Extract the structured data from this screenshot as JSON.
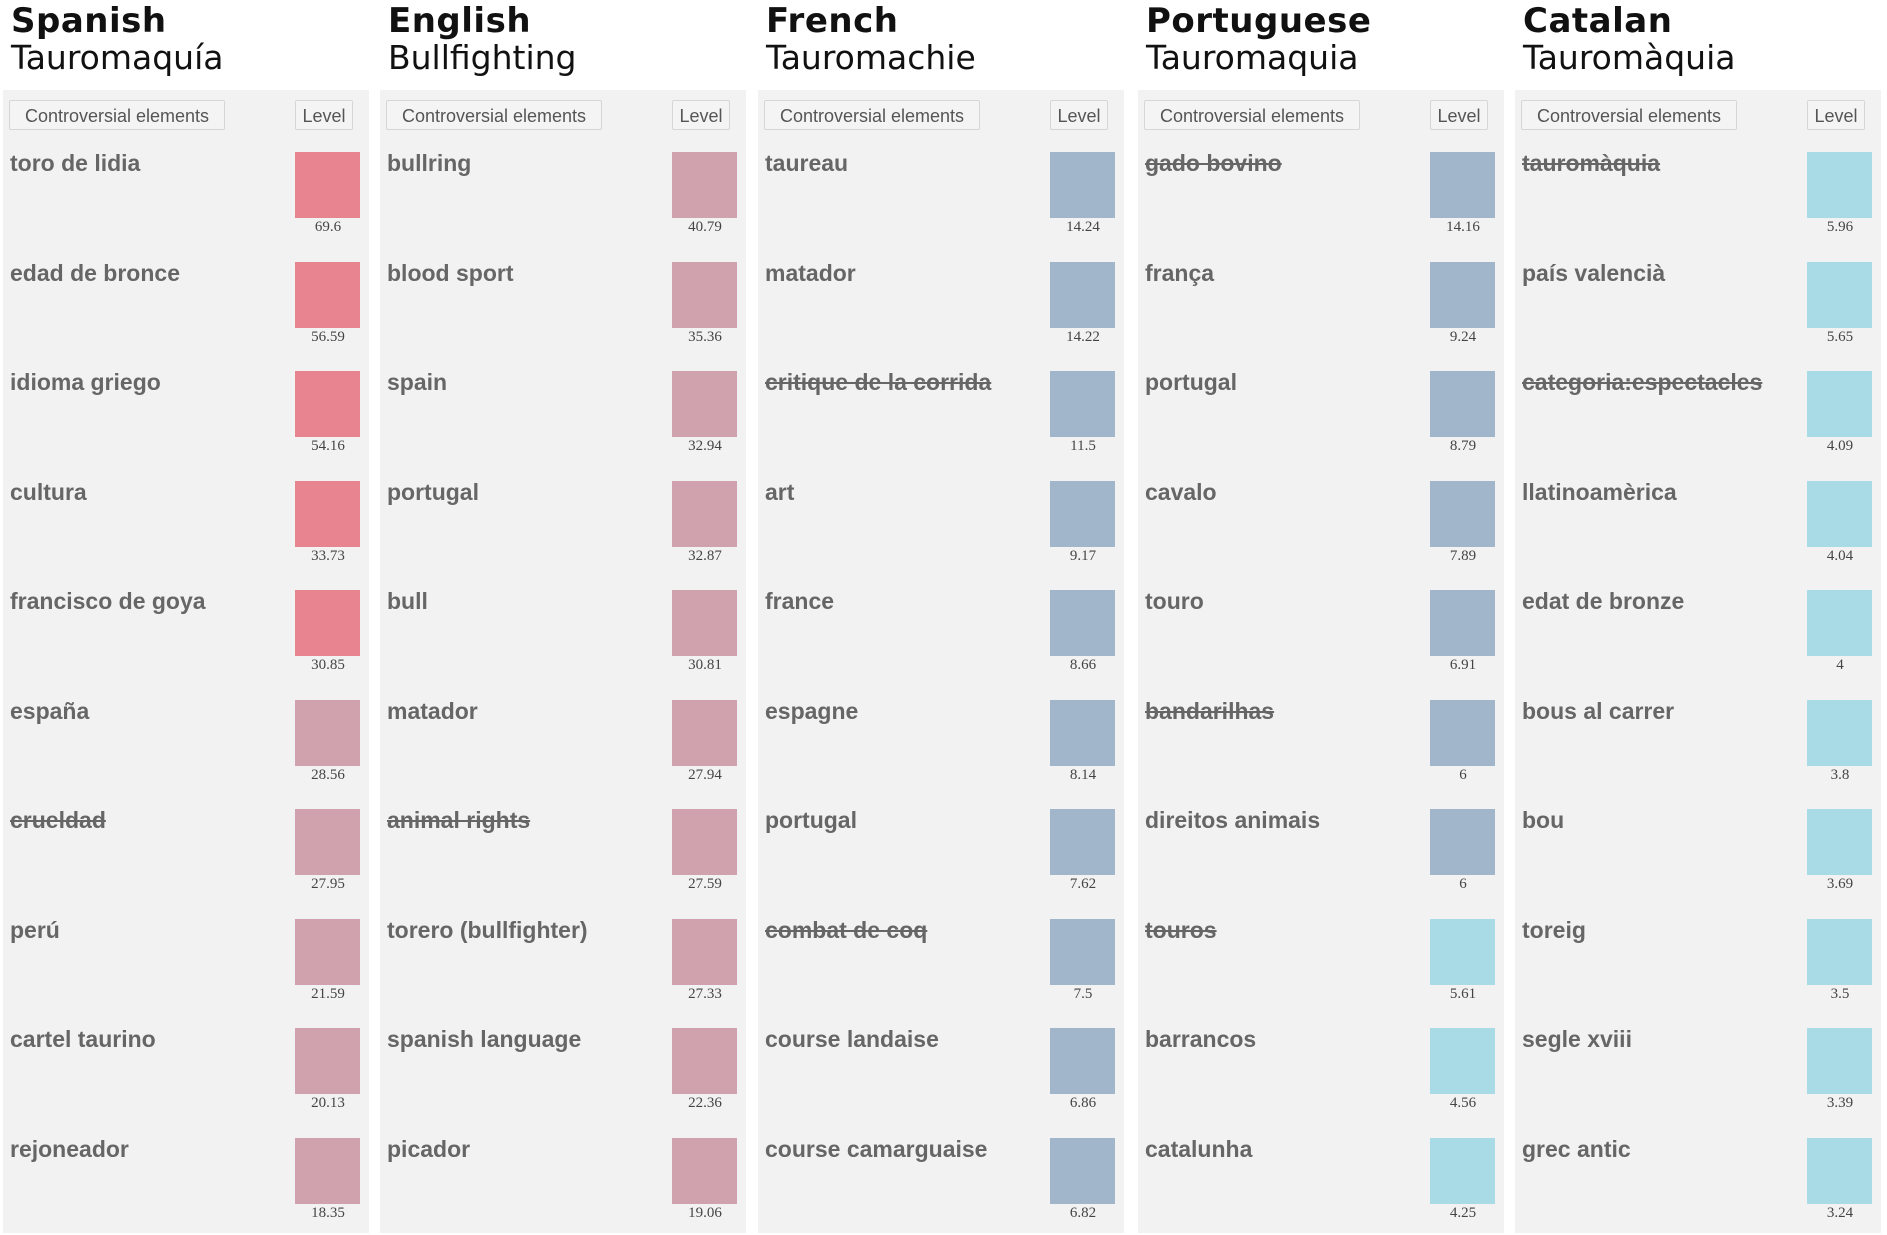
{
  "columns": [
    {
      "language": "Spanish",
      "term": "Tauromaquía",
      "header_elements": "Controversial elements",
      "header_level": "Level",
      "rows": [
        {
          "label": "toro de lidia",
          "value": "69.6",
          "strike": false,
          "color": "#e8848f"
        },
        {
          "label": "edad de bronce",
          "value": "56.59",
          "strike": false,
          "color": "#e8848f"
        },
        {
          "label": "idioma griego",
          "value": "54.16",
          "strike": false,
          "color": "#e8848f"
        },
        {
          "label": "cultura",
          "value": "33.73",
          "strike": false,
          "color": "#e8848f"
        },
        {
          "label": "francisco de goya",
          "value": "30.85",
          "strike": false,
          "color": "#e8848f"
        },
        {
          "label": "españa",
          "value": "28.56",
          "strike": false,
          "color": "#cfa2ad"
        },
        {
          "label": "crueldad",
          "value": "27.95",
          "strike": true,
          "color": "#cfa2ad"
        },
        {
          "label": "perú",
          "value": "21.59",
          "strike": false,
          "color": "#cfa2ad"
        },
        {
          "label": "cartel taurino",
          "value": "20.13",
          "strike": false,
          "color": "#cfa2ad"
        },
        {
          "label": "rejoneador",
          "value": "18.35",
          "strike": false,
          "color": "#cfa2ad"
        }
      ]
    },
    {
      "language": "English",
      "term": "Bullfighting",
      "header_elements": "Controversial elements",
      "header_level": "Level",
      "rows": [
        {
          "label": "bullring",
          "value": "40.79",
          "strike": false,
          "color": "#cfa2ad"
        },
        {
          "label": "blood sport",
          "value": "35.36",
          "strike": false,
          "color": "#cfa2ad"
        },
        {
          "label": "spain",
          "value": "32.94",
          "strike": false,
          "color": "#cfa2ad"
        },
        {
          "label": "portugal",
          "value": "32.87",
          "strike": false,
          "color": "#cfa2ad"
        },
        {
          "label": "bull",
          "value": "30.81",
          "strike": false,
          "color": "#cfa2ad"
        },
        {
          "label": "matador",
          "value": "27.94",
          "strike": false,
          "color": "#cfa2ad"
        },
        {
          "label": "animal rights",
          "value": "27.59",
          "strike": true,
          "color": "#cfa2ad"
        },
        {
          "label": "torero (bullfighter)",
          "value": "27.33",
          "strike": false,
          "color": "#cfa2ad"
        },
        {
          "label": "spanish language",
          "value": "22.36",
          "strike": false,
          "color": "#cfa2ad"
        },
        {
          "label": "picador",
          "value": "19.06",
          "strike": false,
          "color": "#cfa2ad"
        }
      ]
    },
    {
      "language": "French",
      "term": "Tauromachie",
      "header_elements": "Controversial elements",
      "header_level": "Level",
      "rows": [
        {
          "label": "taureau",
          "value": "14.24",
          "strike": false,
          "color": "#a2b6cb"
        },
        {
          "label": "matador",
          "value": "14.22",
          "strike": false,
          "color": "#a2b6cb"
        },
        {
          "label": "critique de la corrida",
          "value": "11.5",
          "strike": true,
          "color": "#a2b6cb"
        },
        {
          "label": "art",
          "value": "9.17",
          "strike": false,
          "color": "#a2b6cb"
        },
        {
          "label": "france",
          "value": "8.66",
          "strike": false,
          "color": "#a2b6cb"
        },
        {
          "label": "espagne",
          "value": "8.14",
          "strike": false,
          "color": "#a2b6cb"
        },
        {
          "label": "portugal",
          "value": "7.62",
          "strike": false,
          "color": "#a2b6cb"
        },
        {
          "label": "combat de coq",
          "value": "7.5",
          "strike": true,
          "color": "#a2b6cb"
        },
        {
          "label": "course landaise",
          "value": "6.86",
          "strike": false,
          "color": "#a2b6cb"
        },
        {
          "label": "course camarguaise",
          "value": "6.82",
          "strike": false,
          "color": "#a2b6cb"
        }
      ]
    },
    {
      "language": "Portuguese",
      "term": "Tauromaquia",
      "header_elements": "Controversial elements",
      "header_level": "Level",
      "rows": [
        {
          "label": "gado bovino",
          "value": "14.16",
          "strike": true,
          "color": "#a2b6cb"
        },
        {
          "label": "frança",
          "value": "9.24",
          "strike": false,
          "color": "#a2b6cb"
        },
        {
          "label": "portugal",
          "value": "8.79",
          "strike": false,
          "color": "#a2b6cb"
        },
        {
          "label": "cavalo",
          "value": "7.89",
          "strike": false,
          "color": "#a2b6cb"
        },
        {
          "label": "touro",
          "value": "6.91",
          "strike": false,
          "color": "#a2b6cb"
        },
        {
          "label": "bandarilhas",
          "value": "6",
          "strike": true,
          "color": "#a2b6cb"
        },
        {
          "label": "direitos animais",
          "value": "6",
          "strike": false,
          "color": "#a2b6cb"
        },
        {
          "label": "touros",
          "value": "5.61",
          "strike": true,
          "color": "#a9dbe6"
        },
        {
          "label": "barrancos",
          "value": "4.56",
          "strike": false,
          "color": "#a9dbe6"
        },
        {
          "label": "catalunha",
          "value": "4.25",
          "strike": false,
          "color": "#a9dbe6"
        }
      ]
    },
    {
      "language": "Catalan",
      "term": "Tauromàquia",
      "header_elements": "Controversial elements",
      "header_level": "Level",
      "rows": [
        {
          "label": "tauromàquia",
          "value": "5.96",
          "strike": true,
          "color": "#a9dbe6"
        },
        {
          "label": "país valencià",
          "value": "5.65",
          "strike": false,
          "color": "#a9dbe6"
        },
        {
          "label": "categoria:espectacles",
          "value": "4.09",
          "strike": true,
          "color": "#a9dbe6"
        },
        {
          "label": "llatinoamèrica",
          "value": "4.04",
          "strike": false,
          "color": "#a9dbe6"
        },
        {
          "label": "edat de bronze",
          "value": "4",
          "strike": false,
          "color": "#a9dbe6"
        },
        {
          "label": "bous al carrer",
          "value": "3.8",
          "strike": false,
          "color": "#a9dbe6"
        },
        {
          "label": "bou",
          "value": "3.69",
          "strike": false,
          "color": "#a9dbe6"
        },
        {
          "label": "toreig",
          "value": "3.5",
          "strike": false,
          "color": "#a9dbe6"
        },
        {
          "label": "segle xviii",
          "value": "3.39",
          "strike": false,
          "color": "#a9dbe6"
        },
        {
          "label": "grec antic",
          "value": "3.24",
          "strike": false,
          "color": "#a9dbe6"
        }
      ]
    }
  ]
}
